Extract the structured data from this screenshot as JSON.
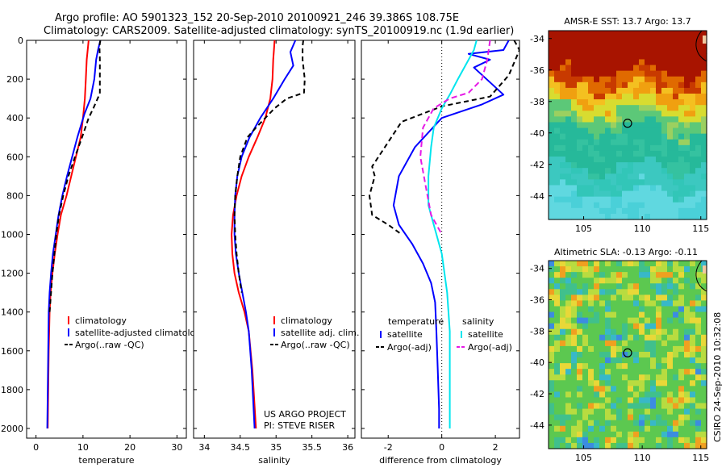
{
  "header": {
    "title_line1": "Argo profile: AO 5901323_152 20-Sep-2010 20100921_246 39.386S 108.75E",
    "title_line2": "Climatology: CARS2009. Satellite-adjusted climatology: synTS_20100919.nc (1.9d earlier)"
  },
  "credit": "CSIRO 24-Sep-2010 10:32:08",
  "project": {
    "line1": "US ARGO PROJECT",
    "line2": "PI: STEVE RISER"
  },
  "colors": {
    "climatology": "#ff0000",
    "satellite": "#0000ff",
    "argo": "#000000",
    "sal_satellite": "#00e5ee",
    "sal_argo": "#e619e6"
  },
  "chart_data": [
    {
      "type": "line",
      "id": "temperature",
      "xlabel": "temperature",
      "ylabel": "",
      "xlim": [
        -2,
        32
      ],
      "ylim": [
        2050,
        0
      ],
      "xticks": [
        0,
        10,
        20,
        30
      ],
      "yticks": [
        0,
        200,
        400,
        600,
        800,
        1000,
        1200,
        1400,
        1600,
        1800,
        2000
      ],
      "legend": [
        "climatology",
        "satellite-adjusted climatology",
        "Argo(..raw -QC)"
      ],
      "series": [
        {
          "name": "climatology",
          "color": "#ff0000",
          "dash": "",
          "x": [
            11.2,
            11.0,
            10.8,
            10.6,
            10.4,
            10.0,
            9.5,
            8.5,
            7.5,
            6.5,
            5.3,
            4.6,
            4.0,
            3.5,
            3.1,
            2.9,
            2.7,
            2.6,
            2.5
          ],
          "y": [
            0,
            50,
            100,
            200,
            300,
            400,
            500,
            600,
            700,
            800,
            900,
            1000,
            1100,
            1200,
            1300,
            1400,
            1600,
            1800,
            2000
          ]
        },
        {
          "name": "satellite-adjusted climatology",
          "color": "#0000ff",
          "dash": "",
          "x": [
            13.7,
            13.2,
            12.8,
            12.4,
            11.6,
            10.3,
            8.8,
            7.7,
            6.6,
            5.6,
            4.8,
            4.2,
            3.6,
            3.2,
            2.9,
            2.7,
            2.6,
            2.5,
            2.4
          ],
          "y": [
            0,
            50,
            100,
            200,
            300,
            380,
            500,
            600,
            700,
            800,
            900,
            1000,
            1100,
            1200,
            1300,
            1400,
            1600,
            1800,
            2000
          ]
        },
        {
          "name": "Argo(..raw -QC)",
          "color": "#000000",
          "dash": "6,4",
          "x": [
            13.7,
            13.5,
            13.6,
            13.6,
            13.6,
            13.3,
            12.2,
            11.2,
            9.8,
            8.3,
            6.9,
            5.8,
            4.9,
            4.3,
            3.9,
            3.5,
            3.2,
            2.9
          ],
          "y": [
            0,
            30,
            100,
            200,
            270,
            290,
            350,
            400,
            500,
            600,
            700,
            800,
            900,
            1000,
            1100,
            1200,
            1300,
            1400
          ]
        }
      ]
    },
    {
      "type": "line",
      "id": "salinity",
      "xlabel": "salinity",
      "ylabel": "",
      "xlim": [
        33.85,
        36.1
      ],
      "ylim": [
        2050,
        0
      ],
      "xticks": [
        34,
        34.5,
        35,
        35.5,
        36
      ],
      "legend": [
        "climatology",
        "satellite adj. clim.",
        "Argo(..raw -QC)"
      ],
      "series": [
        {
          "name": "climatology",
          "color": "#ff0000",
          "dash": "",
          "x": [
            34.98,
            34.97,
            34.96,
            34.95,
            34.92,
            34.85,
            34.74,
            34.62,
            34.52,
            34.45,
            34.4,
            34.38,
            34.39,
            34.42,
            34.48,
            34.56,
            34.62,
            34.67,
            34.72
          ],
          "y": [
            0,
            50,
            100,
            200,
            300,
            400,
            500,
            600,
            700,
            800,
            900,
            1000,
            1100,
            1200,
            1300,
            1400,
            1500,
            1700,
            2000
          ]
        },
        {
          "name": "satellite adj. clim.",
          "color": "#0000ff",
          "dash": "",
          "x": [
            35.27,
            35.2,
            35.24,
            35.12,
            34.96,
            34.78,
            34.63,
            34.52,
            34.46,
            34.43,
            34.42,
            34.42,
            34.44,
            34.48,
            34.53,
            34.58,
            34.62,
            34.66,
            34.7
          ],
          "y": [
            0,
            60,
            130,
            200,
            300,
            400,
            500,
            600,
            700,
            800,
            900,
            1000,
            1100,
            1200,
            1300,
            1400,
            1500,
            1700,
            2000
          ]
        },
        {
          "name": "Argo(..raw -QC)",
          "color": "#000000",
          "dash": "6,4",
          "x": [
            35.38,
            35.37,
            35.37,
            35.4,
            35.39,
            35.15,
            34.98,
            34.85,
            34.72,
            34.6,
            34.5,
            34.46,
            34.43,
            34.42,
            34.43,
            34.45,
            34.48,
            34.52
          ],
          "y": [
            0,
            30,
            100,
            200,
            270,
            300,
            350,
            400,
            450,
            500,
            600,
            700,
            800,
            900,
            1000,
            1100,
            1200,
            1300
          ]
        }
      ]
    },
    {
      "type": "line",
      "id": "difference",
      "xlabel": "difference from climatology",
      "ylabel": "",
      "xlim": [
        -3.0,
        2.9
      ],
      "ylim": [
        2050,
        0
      ],
      "xticks": [
        -2,
        0,
        2
      ],
      "zero_line": 0,
      "legend_headers": [
        "temperature",
        "salinity"
      ],
      "legend": [
        "satellite",
        "Argo(-adj)",
        "satellite",
        "Argo(-adj)"
      ],
      "series": [
        {
          "name": "satellite",
          "group": "temperature",
          "color": "#0000ff",
          "dash": "",
          "x": [
            2.5,
            2.3,
            1.0,
            1.8,
            1.2,
            2.3,
            1.5,
            0.0,
            -1.0,
            -1.6,
            -1.8,
            -1.6,
            -1.1,
            -0.7,
            -0.4,
            -0.25,
            -0.2,
            -0.15,
            -0.1,
            -0.1
          ],
          "y": [
            0,
            50,
            70,
            100,
            140,
            280,
            330,
            400,
            550,
            700,
            850,
            950,
            1050,
            1150,
            1250,
            1350,
            1500,
            1700,
            1900,
            2000
          ]
        },
        {
          "name": "Argo(-adj)",
          "group": "temperature",
          "color": "#000000",
          "dash": "6,4",
          "x": [
            2.7,
            2.9,
            2.5,
            1.8,
            0.0,
            -1.5,
            -2.6,
            -2.5,
            -2.7,
            -2.6,
            -2.0,
            -1.5
          ],
          "y": [
            0,
            50,
            180,
            290,
            340,
            420,
            650,
            700,
            800,
            900,
            950,
            1000
          ]
        },
        {
          "name": "satellite",
          "group": "salinity",
          "color": "#00e5ee",
          "dash": "",
          "x": [
            1.3,
            1.2,
            1.0,
            0.6,
            0.3,
            0.0,
            -0.3,
            -0.4,
            -0.5,
            -0.5,
            -0.3,
            0.0,
            0.2,
            0.3,
            0.3,
            0.3,
            0.3,
            0.3
          ],
          "y": [
            0,
            50,
            100,
            200,
            280,
            350,
            450,
            550,
            700,
            850,
            950,
            1100,
            1300,
            1500,
            1600,
            1800,
            1950,
            2000
          ]
        },
        {
          "name": "Argo(-adj)",
          "group": "salinity",
          "color": "#e619e6",
          "dash": "7,4",
          "x": [
            1.8,
            1.7,
            1.5,
            1.0,
            0.3,
            -0.3,
            -0.7,
            -0.8,
            -0.6,
            -0.4,
            0.0
          ],
          "y": [
            0,
            100,
            200,
            270,
            300,
            350,
            450,
            600,
            750,
            900,
            1000
          ]
        }
      ]
    }
  ],
  "maps": [
    {
      "id": "sst",
      "title": "AMSR-E SST: 13.7 Argo: 13.7",
      "xlim": [
        102,
        115.5
      ],
      "ylim": [
        -45.5,
        -33.5
      ],
      "xticks": [
        105,
        110,
        115
      ],
      "yticks": [
        -34,
        -36,
        -38,
        -40,
        -42,
        -44
      ],
      "marker": [
        108.75,
        -39.386
      ],
      "field": "sst"
    },
    {
      "id": "sla",
      "title": "Altimetric SLA: -0.13 Argo: -0.11",
      "xlim": [
        102,
        115.5
      ],
      "ylim": [
        -45.5,
        -33.5
      ],
      "xticks": [
        105,
        110,
        115
      ],
      "yticks": [
        -34,
        -36,
        -38,
        -40,
        -42,
        -44
      ],
      "marker": [
        108.75,
        -39.386
      ],
      "field": "sla"
    }
  ]
}
